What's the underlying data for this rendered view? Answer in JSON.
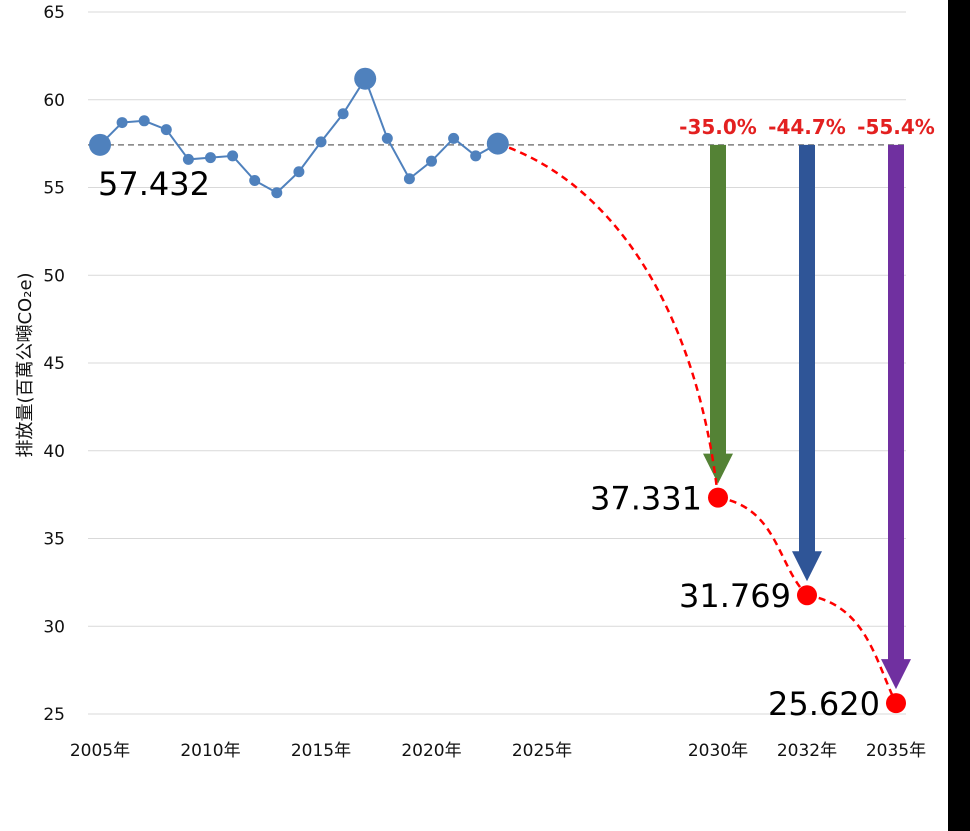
{
  "chart_data": {
    "type": "line",
    "ylabel": "排放量(百萬公噸CO₂e)",
    "ylim": [
      25,
      65
    ],
    "y_ticks": [
      65,
      60,
      55,
      50,
      45,
      40,
      35,
      30,
      25
    ],
    "x_tick_labels": [
      {
        "year": 2005,
        "label": "2005年"
      },
      {
        "year": 2010,
        "label": "2010年"
      },
      {
        "year": 2015,
        "label": "2015年"
      },
      {
        "year": 2020,
        "label": "2020年"
      },
      {
        "year": 2025,
        "label": "2025年"
      },
      {
        "year": 2030,
        "label": "2030年"
      },
      {
        "year": 2032,
        "label": "2032年"
      },
      {
        "year": 2035,
        "label": "2035年"
      }
    ],
    "historical": {
      "x": [
        2005,
        2006,
        2007,
        2008,
        2009,
        2010,
        2011,
        2012,
        2013,
        2014,
        2015,
        2016,
        2017,
        2018,
        2019,
        2020,
        2021,
        2022,
        2023
      ],
      "y": [
        57.432,
        58.7,
        58.8,
        58.3,
        56.6,
        56.7,
        56.8,
        55.4,
        54.7,
        55.9,
        57.6,
        59.2,
        61.2,
        57.8,
        55.5,
        56.5,
        57.8,
        56.8,
        57.5
      ],
      "highlight_years": [
        2005,
        2017,
        2023
      ],
      "color": "#4f81bd"
    },
    "baseline": {
      "value": 57.432,
      "label": "57.432"
    },
    "targets": [
      {
        "year": 2030,
        "value": 37.331,
        "label": "37.331",
        "reduction": "-35.0%",
        "arrow_color": "#548235"
      },
      {
        "year": 2032,
        "value": 31.769,
        "label": "31.769",
        "reduction": "-44.7%",
        "arrow_color": "#2f5597"
      },
      {
        "year": 2035,
        "value": 25.62,
        "label": "25.620",
        "reduction": "-55.4%",
        "arrow_color": "#7030a0"
      }
    ],
    "target_color": "#ff0000",
    "reduction_label_color": "#e32020",
    "grid": true
  }
}
